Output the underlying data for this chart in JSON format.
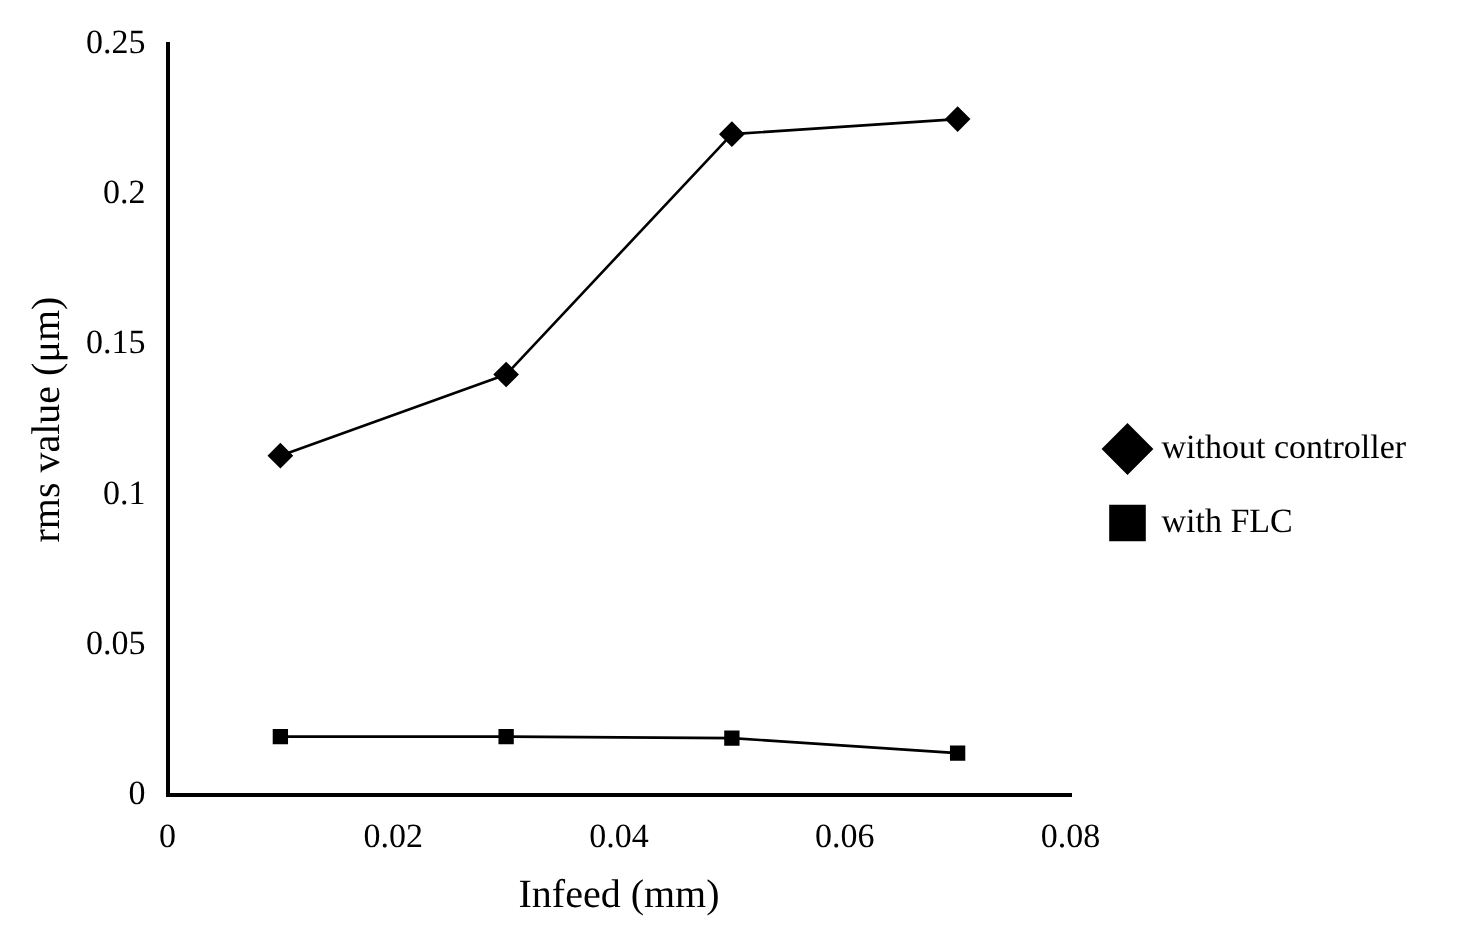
{
  "chart_data": {
    "type": "line",
    "xlabel": "Infeed (mm)",
    "ylabel": "rms value (μm)",
    "x": [
      0.01,
      0.03,
      0.05,
      0.07
    ],
    "series": [
      {
        "name": "without controller",
        "color": "#000000",
        "values": [
          0.113,
          0.14,
          0.22,
          0.225
        ],
        "marker": "diamond"
      },
      {
        "name": "with FLC",
        "color": "#000000",
        "values": [
          0.0195,
          0.0195,
          0.019,
          0.014
        ],
        "marker": "square"
      }
    ],
    "xlim": [
      0,
      0.08
    ],
    "xticks": [
      0,
      0.02,
      0.04,
      0.06,
      0.08
    ],
    "ylim": [
      0,
      0.25
    ],
    "yticks": [
      0,
      0.05,
      0.1,
      0.15,
      0.2,
      0.25
    ],
    "grid": false,
    "legend": "right",
    "line_style": "solid"
  }
}
